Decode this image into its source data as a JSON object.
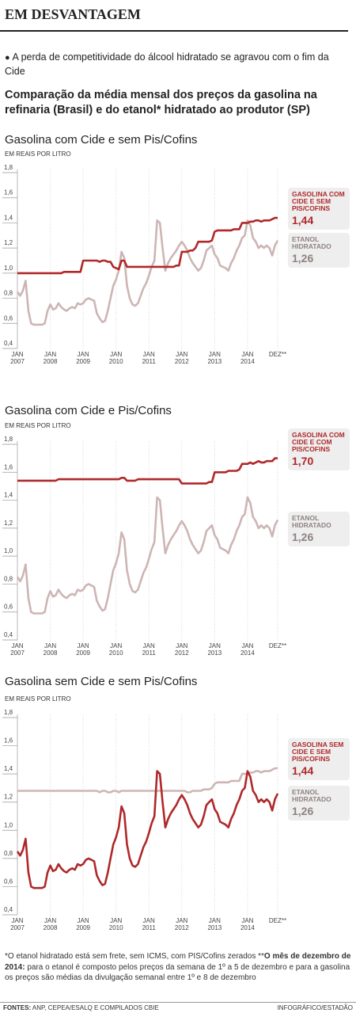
{
  "header": {
    "title": "EM DESVANTAGEM",
    "bullet": "A perda de competitividade do álcool hidratado se agravou com o fim da Cide",
    "subtitle": "Comparação da média mensal dos preços da gasolina na refinaria (Brasil)  e do etanol* hidratado ao produtor (SP)"
  },
  "chart_data": [
    {
      "type": "line",
      "title": "Gasolina com Cide e sem Pis/Cofins",
      "y_label": "EM REAIS POR LITRO",
      "categories": [
        "JAN 2007",
        null,
        null,
        null,
        null,
        null,
        null,
        null,
        null,
        null,
        null,
        null,
        "JAN 2008",
        null,
        null,
        null,
        null,
        null,
        null,
        null,
        null,
        null,
        null,
        null,
        "JAN 2009",
        null,
        null,
        null,
        null,
        null,
        null,
        null,
        null,
        null,
        null,
        null,
        "JAN 2010",
        null,
        null,
        null,
        null,
        null,
        null,
        null,
        null,
        null,
        null,
        null,
        "JAN 2011",
        null,
        null,
        null,
        null,
        null,
        null,
        null,
        null,
        null,
        null,
        null,
        "JAN 2012",
        null,
        null,
        null,
        null,
        null,
        null,
        null,
        null,
        null,
        null,
        null,
        "JAN 2013",
        null,
        null,
        null,
        null,
        null,
        null,
        null,
        null,
        null,
        null,
        null,
        "JAN 2014",
        null,
        null,
        null,
        null,
        null,
        null,
        null,
        null,
        null,
        null,
        "DEZ**"
      ],
      "ylim": [
        0.4,
        1.8
      ],
      "yticks": [
        {
          "value": 1.8,
          "label": "1,8"
        },
        {
          "value": 1.6,
          "label": "1,6"
        },
        {
          "value": 1.4,
          "label": "1,4"
        },
        {
          "value": 1.2,
          "label": "1,2"
        },
        {
          "value": 1.0,
          "label": "1,0"
        },
        {
          "value": 0.8,
          "label": "0,8"
        },
        {
          "value": 0.6,
          "label": "0,6"
        },
        {
          "value": 0.4,
          "label": "0,4"
        }
      ],
      "series": [
        {
          "name": "ETANOL HIDRATADO",
          "color": "#cdb5b4",
          "label_color": "#8f8280",
          "label_value": "1,26",
          "values": [
            0.85,
            0.82,
            0.86,
            0.94,
            0.7,
            0.6,
            0.59,
            0.59,
            0.59,
            0.59,
            0.6,
            0.7,
            0.75,
            0.71,
            0.72,
            0.76,
            0.73,
            0.71,
            0.7,
            0.72,
            0.73,
            0.72,
            0.76,
            0.75,
            0.76,
            0.79,
            0.8,
            0.79,
            0.78,
            0.68,
            0.64,
            0.61,
            0.62,
            0.7,
            0.8,
            0.9,
            0.95,
            1.02,
            1.17,
            1.12,
            0.9,
            0.8,
            0.75,
            0.74,
            0.76,
            0.82,
            0.88,
            0.92,
            0.98,
            1.05,
            1.1,
            1.42,
            1.4,
            1.2,
            1.02,
            1.08,
            1.12,
            1.15,
            1.18,
            1.22,
            1.25,
            1.22,
            1.18,
            1.12,
            1.08,
            1.05,
            1.02,
            1.04,
            1.1,
            1.18,
            1.2,
            1.22,
            1.15,
            1.12,
            1.06,
            1.05,
            1.04,
            1.02,
            1.08,
            1.12,
            1.18,
            1.22,
            1.28,
            1.3,
            1.42,
            1.38,
            1.28,
            1.25,
            1.2,
            1.22,
            1.2,
            1.22,
            1.2,
            1.14,
            1.22,
            1.26
          ]
        },
        {
          "name": "GASOLINA COM CIDE E SEM PIS/COFINS",
          "color": "#b0282a",
          "label_color": "#b0282a",
          "label_value": "1,44",
          "values": [
            1.0,
            1.0,
            1.0,
            1.0,
            1.0,
            1.0,
            1.0,
            1.0,
            1.0,
            1.0,
            1.0,
            1.0,
            1.0,
            1.0,
            1.0,
            1.0,
            1.0,
            1.01,
            1.01,
            1.01,
            1.01,
            1.01,
            1.01,
            1.01,
            1.1,
            1.1,
            1.1,
            1.1,
            1.1,
            1.1,
            1.09,
            1.1,
            1.1,
            1.09,
            1.09,
            1.05,
            1.04,
            1.03,
            1.1,
            1.1,
            1.05,
            1.05,
            1.05,
            1.05,
            1.05,
            1.05,
            1.05,
            1.05,
            1.05,
            1.05,
            1.05,
            1.05,
            1.05,
            1.05,
            1.05,
            1.05,
            1.05,
            1.05,
            1.06,
            1.06,
            1.17,
            1.17,
            1.17,
            1.18,
            1.18,
            1.2,
            1.25,
            1.25,
            1.25,
            1.25,
            1.25,
            1.26,
            1.33,
            1.34,
            1.34,
            1.34,
            1.34,
            1.34,
            1.34,
            1.35,
            1.35,
            1.35,
            1.4,
            1.4,
            1.4,
            1.41,
            1.41,
            1.42,
            1.42,
            1.41,
            1.42,
            1.42,
            1.42,
            1.43,
            1.44,
            1.44
          ]
        }
      ]
    },
    {
      "type": "line",
      "title": "Gasolina com Cide e Pis/Cofins",
      "y_label": "EM REAIS POR LITRO",
      "categories": [
        "JAN 2007",
        null,
        null,
        null,
        null,
        null,
        null,
        null,
        null,
        null,
        null,
        null,
        "JAN 2008",
        null,
        null,
        null,
        null,
        null,
        null,
        null,
        null,
        null,
        null,
        null,
        "JAN 2009",
        null,
        null,
        null,
        null,
        null,
        null,
        null,
        null,
        null,
        null,
        null,
        "JAN 2010",
        null,
        null,
        null,
        null,
        null,
        null,
        null,
        null,
        null,
        null,
        null,
        "JAN 2011",
        null,
        null,
        null,
        null,
        null,
        null,
        null,
        null,
        null,
        null,
        null,
        "JAN 2012",
        null,
        null,
        null,
        null,
        null,
        null,
        null,
        null,
        null,
        null,
        null,
        "JAN 2013",
        null,
        null,
        null,
        null,
        null,
        null,
        null,
        null,
        null,
        null,
        null,
        "JAN 2014",
        null,
        null,
        null,
        null,
        null,
        null,
        null,
        null,
        null,
        null,
        "DEZ**"
      ],
      "ylim": [
        0.4,
        1.8
      ],
      "yticks": [
        {
          "value": 1.8,
          "label": "1,8"
        },
        {
          "value": 1.6,
          "label": "1,6"
        },
        {
          "value": 1.4,
          "label": "1,4"
        },
        {
          "value": 1.2,
          "label": "1,2"
        },
        {
          "value": 1.0,
          "label": "1,0"
        },
        {
          "value": 0.8,
          "label": "0,8"
        },
        {
          "value": 0.6,
          "label": "0,6"
        },
        {
          "value": 0.4,
          "label": "0,4"
        }
      ],
      "series": [
        {
          "name": "ETANOL HIDRATADO",
          "color": "#cdb5b4",
          "label_color": "#8f8280",
          "label_value": "1,26",
          "values": [
            0.85,
            0.82,
            0.86,
            0.94,
            0.7,
            0.6,
            0.59,
            0.59,
            0.59,
            0.59,
            0.6,
            0.7,
            0.75,
            0.71,
            0.72,
            0.76,
            0.73,
            0.71,
            0.7,
            0.72,
            0.73,
            0.72,
            0.76,
            0.75,
            0.76,
            0.79,
            0.8,
            0.79,
            0.78,
            0.68,
            0.64,
            0.61,
            0.62,
            0.7,
            0.8,
            0.9,
            0.95,
            1.02,
            1.17,
            1.12,
            0.9,
            0.8,
            0.75,
            0.74,
            0.76,
            0.82,
            0.88,
            0.92,
            0.98,
            1.05,
            1.1,
            1.42,
            1.4,
            1.2,
            1.02,
            1.08,
            1.12,
            1.15,
            1.18,
            1.22,
            1.25,
            1.22,
            1.18,
            1.12,
            1.08,
            1.05,
            1.02,
            1.04,
            1.1,
            1.18,
            1.2,
            1.22,
            1.15,
            1.12,
            1.06,
            1.05,
            1.04,
            1.02,
            1.08,
            1.12,
            1.18,
            1.22,
            1.28,
            1.3,
            1.42,
            1.38,
            1.28,
            1.25,
            1.2,
            1.22,
            1.2,
            1.22,
            1.2,
            1.14,
            1.22,
            1.26
          ]
        },
        {
          "name": "GASOLINA COM CIDE E COM PIS/COFINS",
          "color": "#b0282a",
          "label_color": "#b0282a",
          "label_value": "1,70",
          "values": [
            1.54,
            1.54,
            1.54,
            1.54,
            1.54,
            1.54,
            1.54,
            1.54,
            1.54,
            1.54,
            1.54,
            1.54,
            1.54,
            1.54,
            1.54,
            1.55,
            1.55,
            1.55,
            1.55,
            1.55,
            1.55,
            1.55,
            1.55,
            1.55,
            1.55,
            1.55,
            1.55,
            1.55,
            1.55,
            1.55,
            1.55,
            1.55,
            1.55,
            1.55,
            1.55,
            1.55,
            1.55,
            1.55,
            1.56,
            1.56,
            1.54,
            1.54,
            1.54,
            1.54,
            1.55,
            1.55,
            1.55,
            1.55,
            1.55,
            1.55,
            1.55,
            1.55,
            1.55,
            1.55,
            1.55,
            1.55,
            1.55,
            1.55,
            1.55,
            1.55,
            1.52,
            1.52,
            1.52,
            1.52,
            1.52,
            1.52,
            1.52,
            1.52,
            1.52,
            1.52,
            1.53,
            1.53,
            1.6,
            1.6,
            1.6,
            1.6,
            1.6,
            1.61,
            1.61,
            1.61,
            1.61,
            1.62,
            1.66,
            1.66,
            1.66,
            1.67,
            1.66,
            1.67,
            1.68,
            1.67,
            1.67,
            1.68,
            1.68,
            1.68,
            1.7,
            1.7
          ]
        }
      ]
    },
    {
      "type": "line",
      "title": "Gasolina sem Cide e sem Pis/Cofins",
      "y_label": "EM REAIS POR LITRO",
      "categories": [
        "JAN 2007",
        null,
        null,
        null,
        null,
        null,
        null,
        null,
        null,
        null,
        null,
        null,
        "JAN 2008",
        null,
        null,
        null,
        null,
        null,
        null,
        null,
        null,
        null,
        null,
        null,
        "JAN 2009",
        null,
        null,
        null,
        null,
        null,
        null,
        null,
        null,
        null,
        null,
        null,
        "JAN 2010",
        null,
        null,
        null,
        null,
        null,
        null,
        null,
        null,
        null,
        null,
        null,
        "JAN 2011",
        null,
        null,
        null,
        null,
        null,
        null,
        null,
        null,
        null,
        null,
        null,
        "JAN 2012",
        null,
        null,
        null,
        null,
        null,
        null,
        null,
        null,
        null,
        null,
        null,
        "JAN 2013",
        null,
        null,
        null,
        null,
        null,
        null,
        null,
        null,
        null,
        null,
        null,
        "JAN 2014",
        null,
        null,
        null,
        null,
        null,
        null,
        null,
        null,
        null,
        null,
        "DEZ**"
      ],
      "ylim": [
        0.4,
        1.8
      ],
      "yticks": [
        {
          "value": 1.8,
          "label": "1,8"
        },
        {
          "value": 1.6,
          "label": "1,6"
        },
        {
          "value": 1.4,
          "label": "1,4"
        },
        {
          "value": 1.2,
          "label": "1,2"
        },
        {
          "value": 1.0,
          "label": "1,0"
        },
        {
          "value": 0.8,
          "label": "0,8"
        },
        {
          "value": 0.6,
          "label": "0,6"
        },
        {
          "value": 0.4,
          "label": "0,4"
        }
      ],
      "series": [
        {
          "name": "GASOLINA SEM CIDE E SEM PIS/COFINS",
          "color": "#cdb5b4",
          "label_color": "#b0282a",
          "label_value": "1,44",
          "values": [
            1.28,
            1.28,
            1.28,
            1.28,
            1.28,
            1.28,
            1.28,
            1.28,
            1.28,
            1.28,
            1.28,
            1.28,
            1.28,
            1.28,
            1.28,
            1.28,
            1.28,
            1.28,
            1.28,
            1.28,
            1.28,
            1.28,
            1.28,
            1.28,
            1.28,
            1.28,
            1.28,
            1.28,
            1.28,
            1.28,
            1.27,
            1.28,
            1.28,
            1.27,
            1.27,
            1.28,
            1.28,
            1.27,
            1.28,
            1.28,
            1.28,
            1.28,
            1.28,
            1.28,
            1.28,
            1.28,
            1.28,
            1.28,
            1.28,
            1.28,
            1.28,
            1.28,
            1.28,
            1.28,
            1.28,
            1.28,
            1.28,
            1.28,
            1.28,
            1.28,
            1.28,
            1.28,
            1.27,
            1.27,
            1.28,
            1.28,
            1.28,
            1.28,
            1.29,
            1.29,
            1.29,
            1.3,
            1.33,
            1.34,
            1.34,
            1.34,
            1.34,
            1.34,
            1.35,
            1.35,
            1.35,
            1.35,
            1.4,
            1.4,
            1.4,
            1.41,
            1.41,
            1.42,
            1.42,
            1.41,
            1.42,
            1.42,
            1.42,
            1.43,
            1.44,
            1.44
          ]
        },
        {
          "name": "ETANOL HIDRATADO",
          "color": "#b0282a",
          "label_color": "#8f8280",
          "label_value": "1,26",
          "values": [
            0.85,
            0.82,
            0.86,
            0.94,
            0.7,
            0.6,
            0.59,
            0.59,
            0.59,
            0.59,
            0.6,
            0.7,
            0.75,
            0.71,
            0.72,
            0.76,
            0.73,
            0.71,
            0.7,
            0.72,
            0.73,
            0.72,
            0.76,
            0.75,
            0.76,
            0.79,
            0.8,
            0.79,
            0.78,
            0.68,
            0.64,
            0.61,
            0.62,
            0.7,
            0.8,
            0.9,
            0.95,
            1.02,
            1.17,
            1.12,
            0.9,
            0.8,
            0.75,
            0.74,
            0.76,
            0.82,
            0.88,
            0.92,
            0.98,
            1.05,
            1.1,
            1.42,
            1.4,
            1.2,
            1.02,
            1.08,
            1.12,
            1.15,
            1.18,
            1.22,
            1.25,
            1.22,
            1.18,
            1.12,
            1.08,
            1.05,
            1.02,
            1.04,
            1.1,
            1.18,
            1.2,
            1.22,
            1.15,
            1.12,
            1.06,
            1.05,
            1.04,
            1.02,
            1.08,
            1.12,
            1.18,
            1.22,
            1.28,
            1.3,
            1.42,
            1.38,
            1.28,
            1.25,
            1.2,
            1.22,
            1.2,
            1.22,
            1.2,
            1.14,
            1.22,
            1.26
          ]
        }
      ]
    }
  ],
  "footnote": [
    "*O etanol hidratado está sem frete, sem ICMS, com PIS/Cofins zerados **",
    "O mês de dezembro de 2014:",
    " para o etanol é composto pelos preços da semana de 1º a 5 de dezembro  e para a gasolina os preços são médias da divulgação semanal entre 1º e 8 de dezembro"
  ],
  "sources": {
    "label": "FONTES:",
    "text": " ANP, CEPEA/ESALQ E COMPILADOS CBIE",
    "credit": "INFOGRÁFICO/ESTADÃO"
  }
}
